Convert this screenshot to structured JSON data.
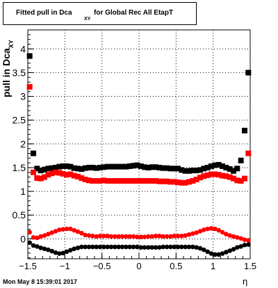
{
  "title": {
    "main": "Fitted pull in Dca",
    "subscript": "XY",
    "rest": "for Global Rec All EtapT"
  },
  "footer": "Mon May  8 15:39:01 2017",
  "chart_data": {
    "type": "scatter",
    "title": "Fitted pull in Dca XY for Global Rec All EtapT",
    "xlabel": "η",
    "ylabel": "pull in Dca",
    "ylabel_sub": "XY",
    "xlim": [
      -1.5,
      1.5
    ],
    "ylim": [
      -0.42,
      4.4
    ],
    "grid": true,
    "x_ticks": [
      -1.5,
      -1,
      -0.5,
      0,
      0.5,
      1,
      1.5
    ],
    "x_tick_labels": [
      "−1.5",
      "−1",
      "−0.5",
      "0",
      "0.5",
      "1",
      "1.5"
    ],
    "y_ticks": [
      0,
      0.5,
      1,
      1.5,
      2,
      2.5,
      3,
      3.5,
      4
    ],
    "y_tick_labels": [
      "0",
      "0.5",
      "1",
      "1.5",
      "2",
      "2.5",
      "3",
      "3.5",
      "4"
    ],
    "colors": {
      "black": "#000000",
      "red": "#ff0000",
      "grid": "#000000"
    },
    "series": [
      {
        "marker": "square",
        "color": "#000000",
        "x": [
          -1.475,
          -1.425,
          -1.375,
          -1.325,
          -1.275,
          -1.225,
          -1.175,
          -1.125,
          -1.075,
          -1.025,
          -0.975,
          -0.925,
          -0.875,
          -0.825,
          -0.775,
          -0.725,
          -0.675,
          -0.625,
          -0.575,
          -0.525,
          -0.475,
          -0.425,
          -0.375,
          -0.325,
          -0.275,
          -0.225,
          -0.175,
          -0.125,
          -0.075,
          -0.025,
          0.025,
          0.075,
          0.125,
          0.175,
          0.225,
          0.275,
          0.325,
          0.375,
          0.425,
          0.475,
          0.525,
          0.575,
          0.625,
          0.675,
          0.725,
          0.775,
          0.825,
          0.875,
          0.925,
          0.975,
          1.025,
          1.075,
          1.125,
          1.175,
          1.225,
          1.275,
          1.325,
          1.375,
          1.425,
          1.475
        ],
        "y": [
          3.85,
          1.8,
          1.48,
          1.44,
          1.46,
          1.48,
          1.49,
          1.5,
          1.52,
          1.53,
          1.53,
          1.52,
          1.49,
          1.48,
          1.47,
          1.49,
          1.5,
          1.5,
          1.49,
          1.5,
          1.51,
          1.52,
          1.52,
          1.52,
          1.52,
          1.52,
          1.52,
          1.53,
          1.54,
          1.55,
          1.53,
          1.51,
          1.5,
          1.51,
          1.51,
          1.5,
          1.49,
          1.49,
          1.48,
          1.48,
          1.48,
          1.45,
          1.43,
          1.43,
          1.44,
          1.44,
          1.45,
          1.48,
          1.5,
          1.53,
          1.55,
          1.56,
          1.53,
          1.5,
          1.47,
          1.43,
          1.48,
          1.65,
          2.28,
          3.5
        ]
      },
      {
        "marker": "square",
        "color": "#ff0000",
        "x": [
          -1.475,
          -1.425,
          -1.375,
          -1.325,
          -1.275,
          -1.225,
          -1.175,
          -1.125,
          -1.075,
          -1.025,
          -0.975,
          -0.925,
          -0.875,
          -0.825,
          -0.775,
          -0.725,
          -0.675,
          -0.625,
          -0.575,
          -0.525,
          -0.475,
          -0.425,
          -0.375,
          -0.325,
          -0.275,
          -0.225,
          -0.175,
          -0.125,
          -0.075,
          -0.025,
          0.025,
          0.075,
          0.125,
          0.175,
          0.225,
          0.275,
          0.325,
          0.375,
          0.425,
          0.475,
          0.525,
          0.575,
          0.625,
          0.675,
          0.725,
          0.775,
          0.825,
          0.875,
          0.925,
          0.975,
          1.025,
          1.075,
          1.125,
          1.175,
          1.225,
          1.275,
          1.325,
          1.375,
          1.425,
          1.475
        ],
        "y": [
          3.2,
          1.4,
          1.28,
          1.27,
          1.3,
          1.35,
          1.38,
          1.4,
          1.39,
          1.37,
          1.35,
          1.36,
          1.33,
          1.31,
          1.28,
          1.25,
          1.23,
          1.22,
          1.22,
          1.22,
          1.23,
          1.22,
          1.22,
          1.22,
          1.22,
          1.22,
          1.22,
          1.22,
          1.22,
          1.22,
          1.22,
          1.22,
          1.22,
          1.22,
          1.22,
          1.21,
          1.21,
          1.21,
          1.2,
          1.2,
          1.19,
          1.18,
          1.18,
          1.2,
          1.22,
          1.25,
          1.29,
          1.32,
          1.34,
          1.36,
          1.36,
          1.35,
          1.33,
          1.32,
          1.3,
          1.27,
          1.23,
          1.22,
          1.27,
          1.8
        ]
      },
      {
        "marker": "circle",
        "color": "#ff0000",
        "x": [
          -1.475,
          -1.425,
          -1.375,
          -1.325,
          -1.275,
          -1.225,
          -1.175,
          -1.125,
          -1.075,
          -1.025,
          -0.975,
          -0.925,
          -0.875,
          -0.825,
          -0.775,
          -0.725,
          -0.675,
          -0.625,
          -0.575,
          -0.525,
          -0.475,
          -0.425,
          -0.375,
          -0.325,
          -0.275,
          -0.225,
          -0.175,
          -0.125,
          -0.075,
          -0.025,
          0.025,
          0.075,
          0.125,
          0.175,
          0.225,
          0.275,
          0.325,
          0.375,
          0.425,
          0.475,
          0.525,
          0.575,
          0.625,
          0.675,
          0.725,
          0.775,
          0.825,
          0.875,
          0.925,
          0.975,
          1.025,
          1.075,
          1.125,
          1.175,
          1.225,
          1.275,
          1.325,
          1.375,
          1.425,
          1.475
        ],
        "y": [
          0.14,
          0.03,
          0.02,
          0.05,
          0.07,
          0.1,
          0.13,
          0.16,
          0.19,
          0.2,
          0.21,
          0.21,
          0.18,
          0.15,
          0.12,
          0.08,
          0.07,
          0.06,
          0.05,
          0.06,
          0.06,
          0.06,
          0.05,
          0.05,
          0.05,
          0.05,
          0.05,
          0.05,
          0.05,
          0.04,
          0.04,
          0.04,
          0.05,
          0.05,
          0.06,
          0.06,
          0.05,
          0.05,
          0.05,
          0.06,
          0.06,
          0.06,
          0.07,
          0.09,
          0.11,
          0.13,
          0.16,
          0.19,
          0.21,
          0.22,
          0.21,
          0.18,
          0.14,
          0.1,
          0.07,
          0.05,
          0.03,
          0.01,
          -0.02,
          -0.03
        ]
      },
      {
        "marker": "circle",
        "color": "#000000",
        "x": [
          -1.475,
          -1.425,
          -1.375,
          -1.325,
          -1.275,
          -1.225,
          -1.175,
          -1.125,
          -1.075,
          -1.025,
          -0.975,
          -0.925,
          -0.875,
          -0.825,
          -0.775,
          -0.725,
          -0.675,
          -0.625,
          -0.575,
          -0.525,
          -0.475,
          -0.425,
          -0.375,
          -0.325,
          -0.275,
          -0.225,
          -0.175,
          -0.125,
          -0.075,
          -0.025,
          0.025,
          0.075,
          0.125,
          0.175,
          0.225,
          0.275,
          0.325,
          0.375,
          0.425,
          0.475,
          0.525,
          0.575,
          0.625,
          0.675,
          0.725,
          0.775,
          0.825,
          0.875,
          0.925,
          0.975,
          1.025,
          1.075,
          1.125,
          1.175,
          1.225,
          1.275,
          1.325,
          1.375,
          1.425,
          1.475
        ],
        "y": [
          -0.08,
          -0.14,
          -0.16,
          -0.19,
          -0.21,
          -0.23,
          -0.26,
          -0.29,
          -0.31,
          -0.3,
          -0.27,
          -0.24,
          -0.21,
          -0.19,
          -0.17,
          -0.17,
          -0.17,
          -0.17,
          -0.17,
          -0.17,
          -0.17,
          -0.17,
          -0.17,
          -0.17,
          -0.17,
          -0.17,
          -0.17,
          -0.17,
          -0.17,
          -0.17,
          -0.18,
          -0.18,
          -0.18,
          -0.18,
          -0.18,
          -0.18,
          -0.17,
          -0.17,
          -0.17,
          -0.17,
          -0.17,
          -0.17,
          -0.17,
          -0.17,
          -0.17,
          -0.18,
          -0.2,
          -0.23,
          -0.27,
          -0.31,
          -0.33,
          -0.33,
          -0.31,
          -0.28,
          -0.25,
          -0.22,
          -0.18,
          -0.16,
          -0.13,
          -0.12
        ]
      }
    ]
  }
}
